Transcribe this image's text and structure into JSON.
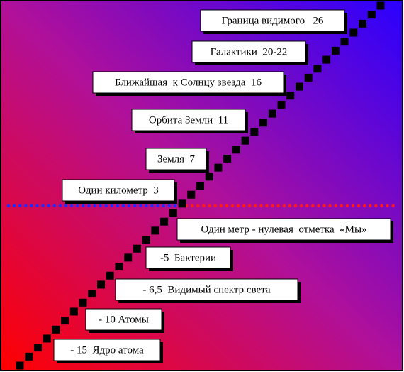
{
  "labels": [
    {
      "text": "Граница видимого   26"
    },
    {
      "text": "Галактики  20-22"
    },
    {
      "text": "Ближайшая  к Солнцу звезда  16"
    },
    {
      "text": "Орбита Земли  11"
    },
    {
      "text": "Земля  7"
    },
    {
      "text": "Один километр  3"
    },
    {
      "text": "Один метр - нулевая  отметка  «Мы»"
    },
    {
      "text": "-5  Бактерии"
    },
    {
      "text": "- 6,5  Видимый спектр света"
    },
    {
      "text": "- 10 Атомы"
    },
    {
      "text": "- 15  Ядро атома"
    }
  ]
}
